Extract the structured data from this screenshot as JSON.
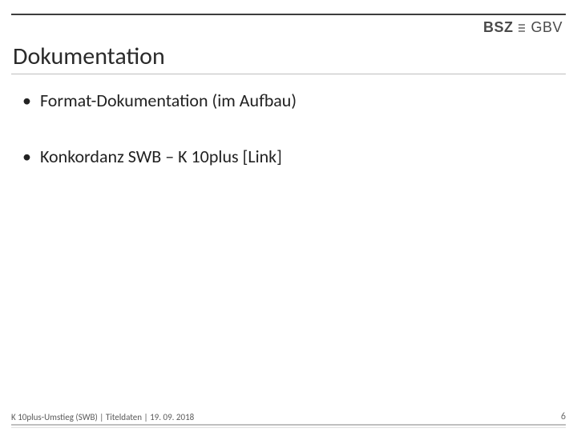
{
  "header": {
    "logo_left": "BSZ",
    "logo_right": "GBV"
  },
  "slide": {
    "title": "Dokumentation",
    "bullets": [
      "Format-Dokumentation (im Aufbau)",
      "Konkordanz SWB – K 10plus [Link]"
    ]
  },
  "footer": {
    "text": "K 10plus-Umstieg (SWB) | Titeldaten | 19. 09. 2018",
    "page_number": "6"
  },
  "style": {
    "title_fontsize": 30,
    "bullet_fontsize": 22,
    "footer_fontsize": 11,
    "rule_color": "#3d3d3d",
    "underline_color": "#bfbfbf",
    "text_color": "#222222",
    "background_color": "#ffffff"
  }
}
